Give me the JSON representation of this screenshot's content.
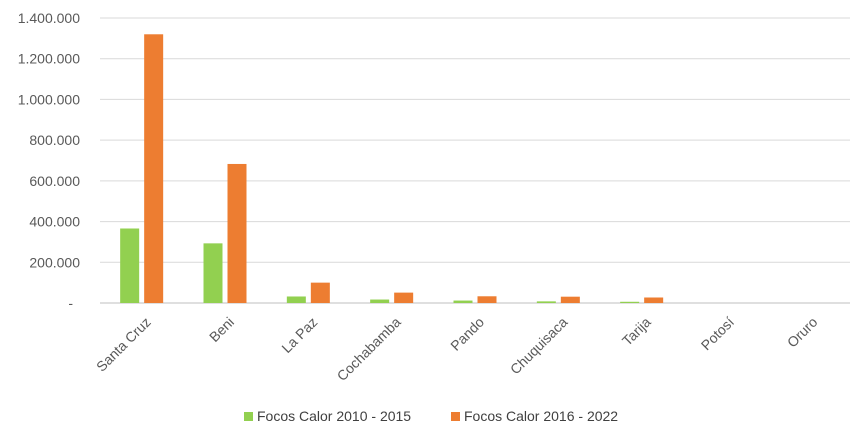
{
  "chart_data": {
    "type": "bar",
    "categories": [
      "Santa Cruz",
      "Beni",
      "La Paz",
      "Cochabamba",
      "Pando",
      "Chuquisaca",
      "Tarija",
      "Potosí",
      "Oruro"
    ],
    "series": [
      {
        "name": "Focos Calor 2010 - 2015",
        "color": "#92D050",
        "values": [
          366000,
          293000,
          32000,
          17000,
          12000,
          8000,
          6000,
          0,
          0
        ]
      },
      {
        "name": "Focos Calor 2016 - 2022",
        "color": "#ED7D31",
        "values": [
          1320000,
          683000,
          100000,
          51000,
          33000,
          31000,
          27000,
          0,
          0
        ]
      }
    ],
    "y_ticks": [
      {
        "value": 0,
        "label": "-"
      },
      {
        "value": 200000,
        "label": "200.000"
      },
      {
        "value": 400000,
        "label": "400.000"
      },
      {
        "value": 600000,
        "label": "600.000"
      },
      {
        "value": 800000,
        "label": "800.000"
      },
      {
        "value": 1000000,
        "label": "1.000.000"
      },
      {
        "value": 1200000,
        "label": "1.200.000"
      },
      {
        "value": 1400000,
        "label": "1.400.000"
      }
    ],
    "ylim": [
      0,
      1400000
    ],
    "grid": true,
    "legend_position": "bottom",
    "gridline_color": "#d9d9d9",
    "axis_color": "#bfbfbf"
  }
}
